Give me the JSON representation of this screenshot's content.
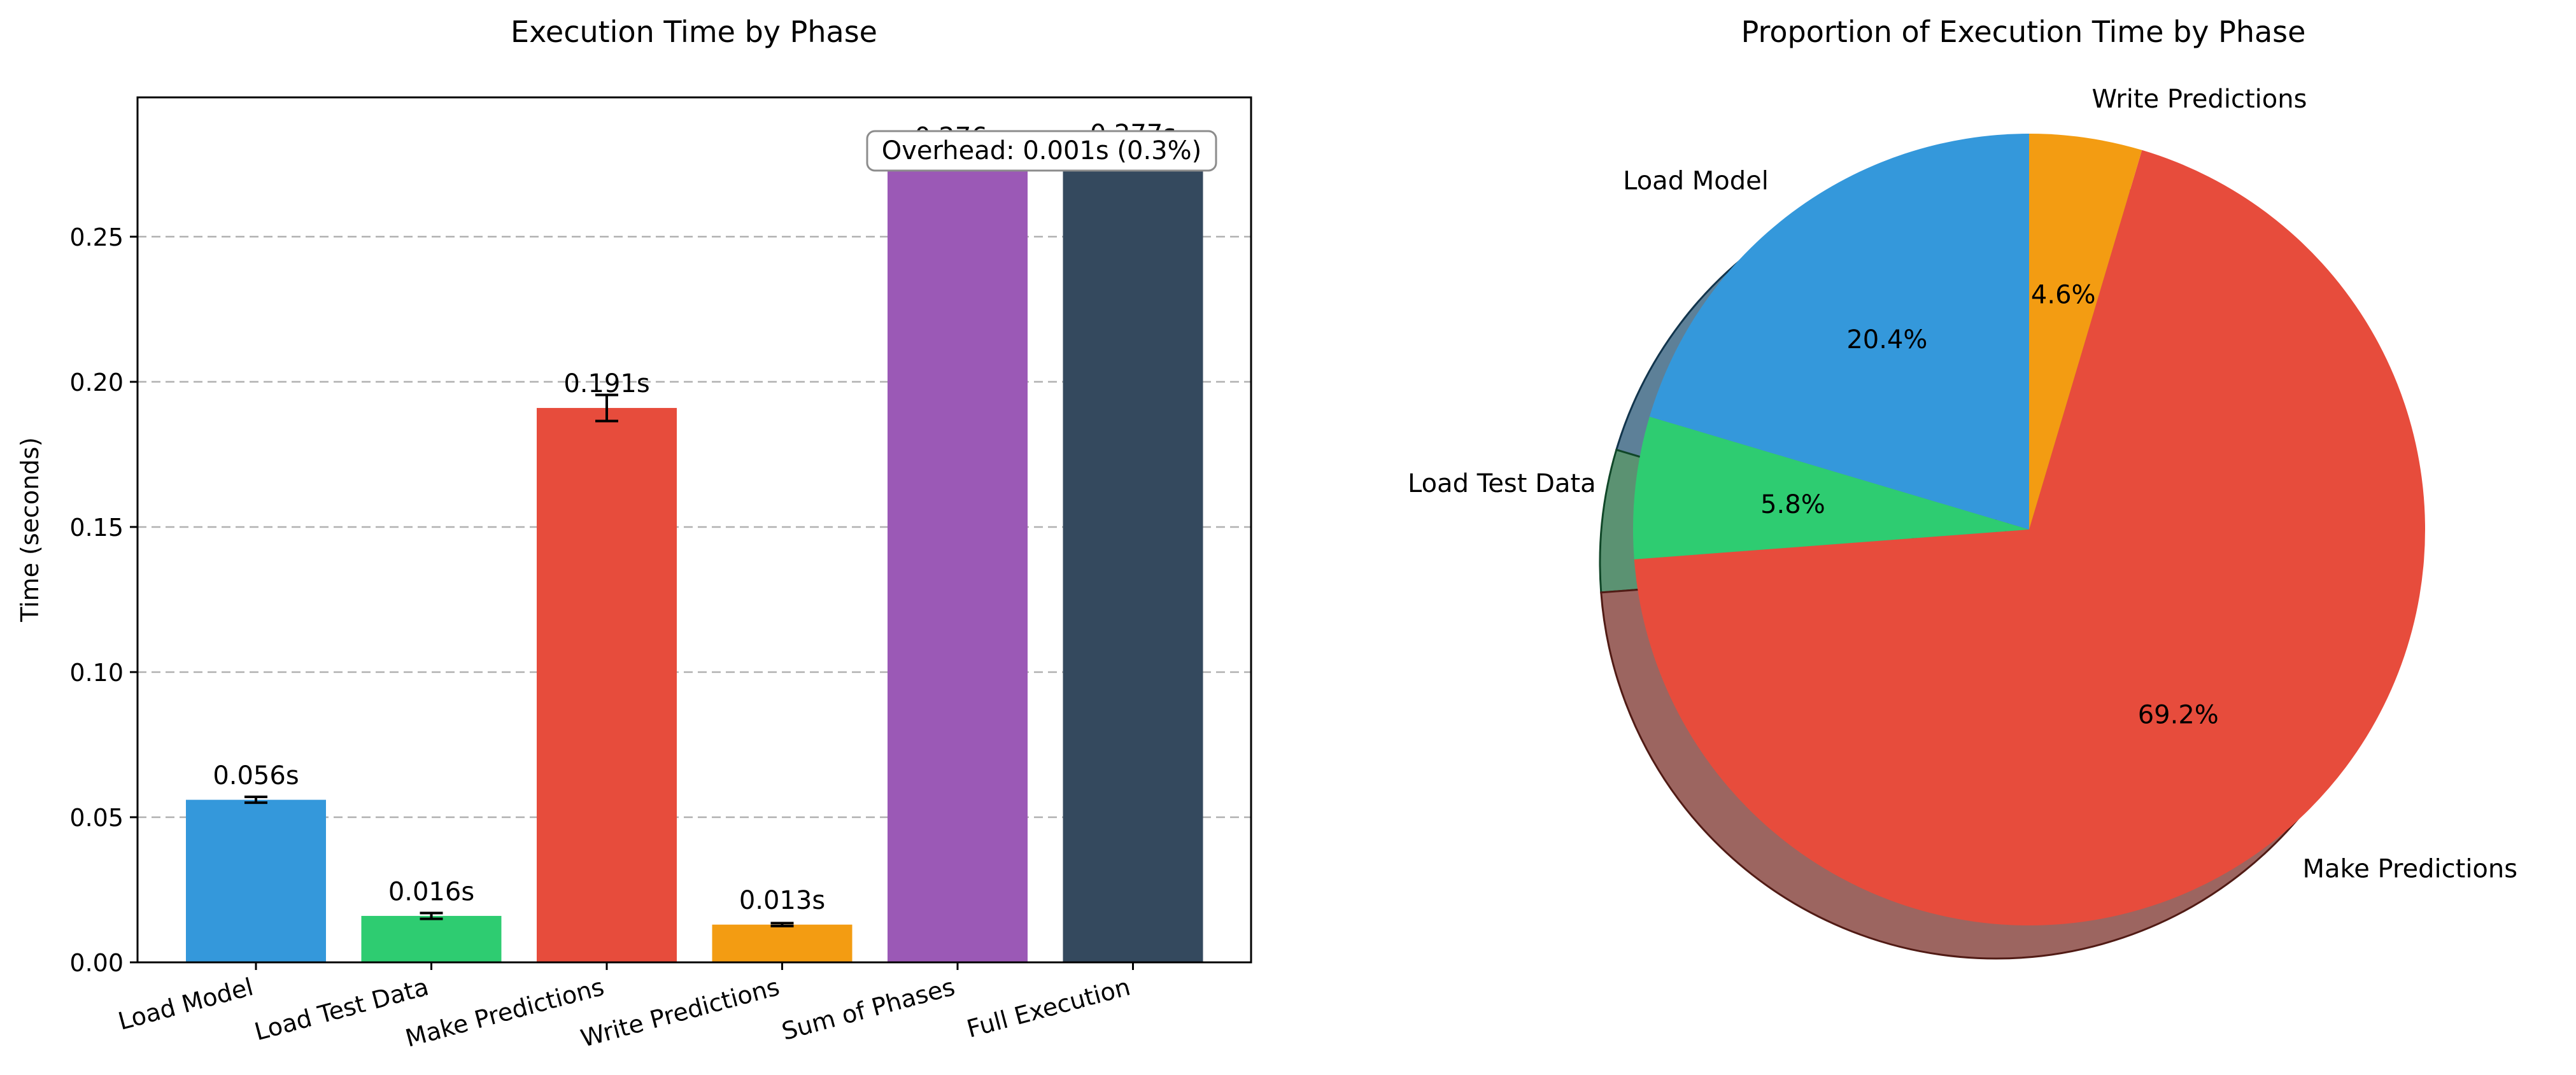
{
  "chart_data": [
    {
      "type": "bar",
      "title": "Execution Time by Phase",
      "xlabel": "",
      "ylabel": "Time (seconds)",
      "categories": [
        "Load Model",
        "Load Test Data",
        "Make Predictions",
        "Write Predictions",
        "Sum of Phases",
        "Full Execution"
      ],
      "values": [
        0.056,
        0.016,
        0.191,
        0.013,
        0.276,
        0.277
      ],
      "errors": [
        0.001,
        0.001,
        0.0045,
        0.0005,
        0,
        0.0013
      ],
      "value_labels": [
        "0.056s",
        "0.016s",
        "0.191s",
        "0.013s",
        "0.276s",
        "0.277s"
      ],
      "colors": [
        "#3498db",
        "#2ecc71",
        "#e74c3c",
        "#f39c12",
        "#9b59b6",
        "#34495e"
      ],
      "ylim": [
        0,
        0.298
      ],
      "yticks": [
        0.0,
        0.05,
        0.1,
        0.15,
        0.2,
        0.25
      ],
      "ytick_labels": [
        "0.00",
        "0.05",
        "0.10",
        "0.15",
        "0.20",
        "0.25"
      ],
      "grid": "y-dashed",
      "annotation": "Overhead: 0.001s (0.3%)"
    },
    {
      "type": "pie",
      "title": "Proportion of Execution Time by Phase",
      "labels": [
        "Load Model",
        "Load Test Data",
        "Make Predictions",
        "Write Predictions"
      ],
      "values": [
        20.4,
        5.8,
        69.2,
        4.6
      ],
      "pct_labels": [
        "20.4%",
        "5.8%",
        "69.2%",
        "4.6%"
      ],
      "colors": [
        "#3498db",
        "#2ecc71",
        "#e74c3c",
        "#f39c12"
      ],
      "start_angle_deg": 90,
      "direction": "counterclockwise",
      "shadow": true
    }
  ]
}
